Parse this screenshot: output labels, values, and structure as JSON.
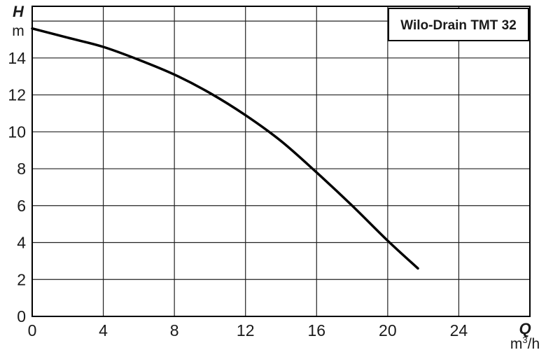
{
  "chart_data": {
    "type": "line",
    "title": "Wilo-Drain TMT 32",
    "ylabel": "H",
    "yunit": "m",
    "xlabel": "Q",
    "xunit_base": "m",
    "xunit_sup": "3",
    "xunit_tail": "/h",
    "xlim": [
      0,
      28
    ],
    "ylim": [
      0,
      16.8
    ],
    "x_ticks": [
      "0",
      "4",
      "8",
      "12",
      "16",
      "20",
      "24"
    ],
    "y_ticks": [
      "0",
      "2",
      "4",
      "6",
      "8",
      "10",
      "12",
      "14"
    ],
    "grid": true,
    "series": [
      {
        "color": "#000000",
        "x": [
          0,
          2,
          4,
          6,
          8,
          10,
          12,
          14,
          16,
          18,
          20,
          21.7
        ],
        "y": [
          15.6,
          15.1,
          14.6,
          13.9,
          13.1,
          12.1,
          10.9,
          9.5,
          7.8,
          6.0,
          4.1,
          2.6
        ]
      }
    ]
  }
}
